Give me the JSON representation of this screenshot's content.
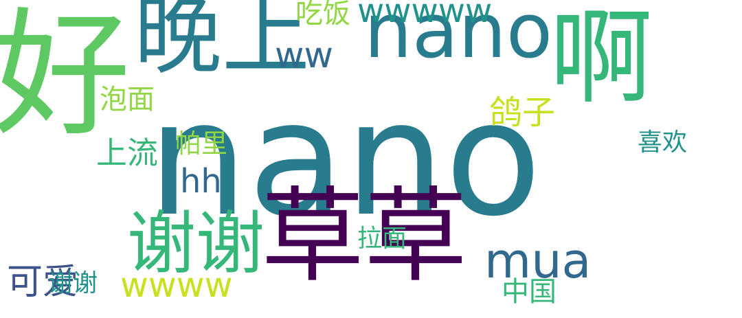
{
  "palette": {
    "dark_purple": "#440154",
    "indigo": "#3b528b",
    "blue": "#31688e",
    "teal": "#21918c",
    "sea_green": "#35b779",
    "light_green": "#5ec962",
    "lime": "#90d743",
    "yellow_green": "#c8e020",
    "teal_blue": "#287c8e"
  },
  "words": [
    {
      "text": "nano",
      "color": "#287c8e"
    },
    {
      "text": "草草",
      "color": "#440154"
    },
    {
      "text": "晚上",
      "color": "#287c8e"
    },
    {
      "text": "nano",
      "color": "#287c8e"
    },
    {
      "text": "好",
      "color": "#5ec962"
    },
    {
      "text": "啊",
      "color": "#35b779"
    },
    {
      "text": "谢谢",
      "color": "#35b779"
    },
    {
      "text": "mua",
      "color": "#31688e"
    },
    {
      "text": "wwwww",
      "color": "#21918c"
    },
    {
      "text": "wwww",
      "color": "#c8e020"
    },
    {
      "text": "可爱",
      "color": "#3b528b"
    },
    {
      "text": "ww",
      "color": "#31688e"
    },
    {
      "text": "hh",
      "color": "#31688e"
    },
    {
      "text": "上流",
      "color": "#35b779"
    },
    {
      "text": "泡面",
      "color": "#90d743"
    },
    {
      "text": "吃饭",
      "color": "#90d743"
    },
    {
      "text": "帕里",
      "color": "#90d743"
    },
    {
      "text": "鸽子",
      "color": "#c8e020"
    },
    {
      "text": "喜欢",
      "color": "#21918c"
    },
    {
      "text": "中国",
      "color": "#35b779"
    },
    {
      "text": "拉面",
      "color": "#35b779"
    },
    {
      "text": "谢谢",
      "color": "#21918c"
    }
  ]
}
